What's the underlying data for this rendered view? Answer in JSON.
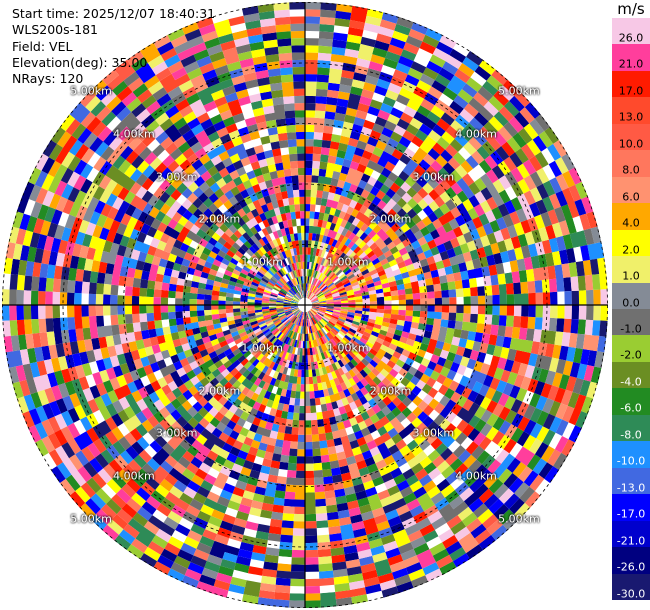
{
  "info": {
    "start_time": "Start time: 2025/12/07 18:40:31",
    "instrument": "WLS200s-181",
    "field": "Field: VEL",
    "elevation": "Elevation(deg): 35.00",
    "nrays": "NRays: 120"
  },
  "range_ring_labels": [
    "1.00km",
    "2.00km",
    "3.00km",
    "4.00km",
    "5.00km"
  ],
  "colorbar": {
    "unit": "m/s",
    "ticks": [
      "26.0",
      "21.0",
      "17.0",
      "13.0",
      "10.0",
      "8.0",
      "6.0",
      "4.0",
      "2.0",
      "1.0",
      "0.0",
      "-1.0",
      "-2.0",
      "-4.0",
      "-6.0",
      "-8.0",
      "-10.0",
      "-13.0",
      "-17.0",
      "-21.0",
      "-26.0",
      "-30.0"
    ],
    "colors": [
      "#f7c8e6",
      "#ff3e9c",
      "#ff1b00",
      "#ff4a2c",
      "#ff5a44",
      "#ff775d",
      "#ff9270",
      "#ffa800",
      "#ffff00",
      "#f0f06a",
      "#848b96",
      "#707070",
      "#9acd32",
      "#6b8e23",
      "#228b22",
      "#2e8b57",
      "#1e90ff",
      "#4169e1",
      "#0000ff",
      "#0000cd",
      "#000080",
      "#191970"
    ]
  }
}
